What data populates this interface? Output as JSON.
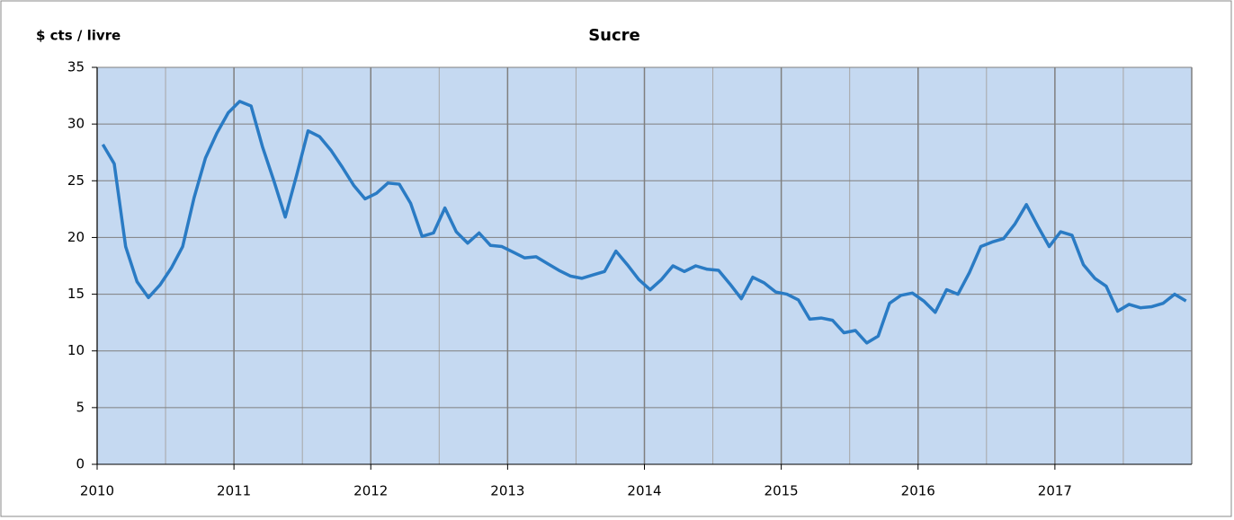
{
  "chart_data": {
    "type": "line",
    "title": "Sucre",
    "y_label": "$ cts / livre",
    "categories": [
      "2010",
      null,
      null,
      null,
      null,
      null,
      null,
      null,
      null,
      null,
      null,
      null,
      "2011",
      null,
      null,
      null,
      null,
      null,
      null,
      null,
      null,
      null,
      null,
      null,
      "2012",
      null,
      null,
      null,
      null,
      null,
      null,
      null,
      null,
      null,
      null,
      null,
      "2013",
      null,
      null,
      null,
      null,
      null,
      null,
      null,
      null,
      null,
      null,
      null,
      "2014",
      null,
      null,
      null,
      null,
      null,
      null,
      null,
      null,
      null,
      null,
      null,
      "2015",
      null,
      null,
      null,
      null,
      null,
      null,
      null,
      null,
      null,
      null,
      null,
      "2016",
      null,
      null,
      null,
      null,
      null,
      null,
      null,
      null,
      null,
      null,
      null,
      "2017",
      null,
      null,
      null,
      null,
      null,
      null,
      null,
      null,
      null,
      null,
      null
    ],
    "values": [
      28.2,
      26.5,
      19.2,
      16.1,
      14.7,
      15.8,
      17.3,
      19.2,
      23.5,
      27,
      29.2,
      31,
      32,
      31.6,
      28,
      25,
      21.8,
      25.5,
      29.4,
      28.9,
      27.7,
      26.2,
      24.6,
      23.4,
      23.9,
      24.8,
      24.7,
      23,
      20.1,
      20.4,
      22.6,
      20.5,
      19.5,
      20.4,
      19.3,
      19.2,
      18.7,
      18.2,
      18.3,
      17.7,
      17.1,
      16.6,
      16.4,
      16.7,
      17,
      18.8,
      17.6,
      16.3,
      15.4,
      16.3,
      17.5,
      17,
      17.5,
      17.2,
      17.1,
      15.9,
      14.6,
      16.5,
      16,
      15.2,
      15,
      14.5,
      12.8,
      12.9,
      12.7,
      11.6,
      11.8,
      10.7,
      11.3,
      14.2,
      14.9,
      15.1,
      14.4,
      13.4,
      15.4,
      15,
      16.9,
      19.2,
      19.6,
      19.9,
      21.2,
      22.9,
      21,
      19.2,
      20.5,
      20.2,
      17.6,
      16.4,
      15.7,
      13.5,
      14.1,
      13.8,
      13.9,
      14.2,
      15,
      14.4
    ],
    "color": "#2a7bc4",
    "ylim": [
      0,
      35
    ],
    "yticks": [
      0,
      5,
      10,
      15,
      20,
      25,
      30,
      35
    ],
    "grid": true
  }
}
